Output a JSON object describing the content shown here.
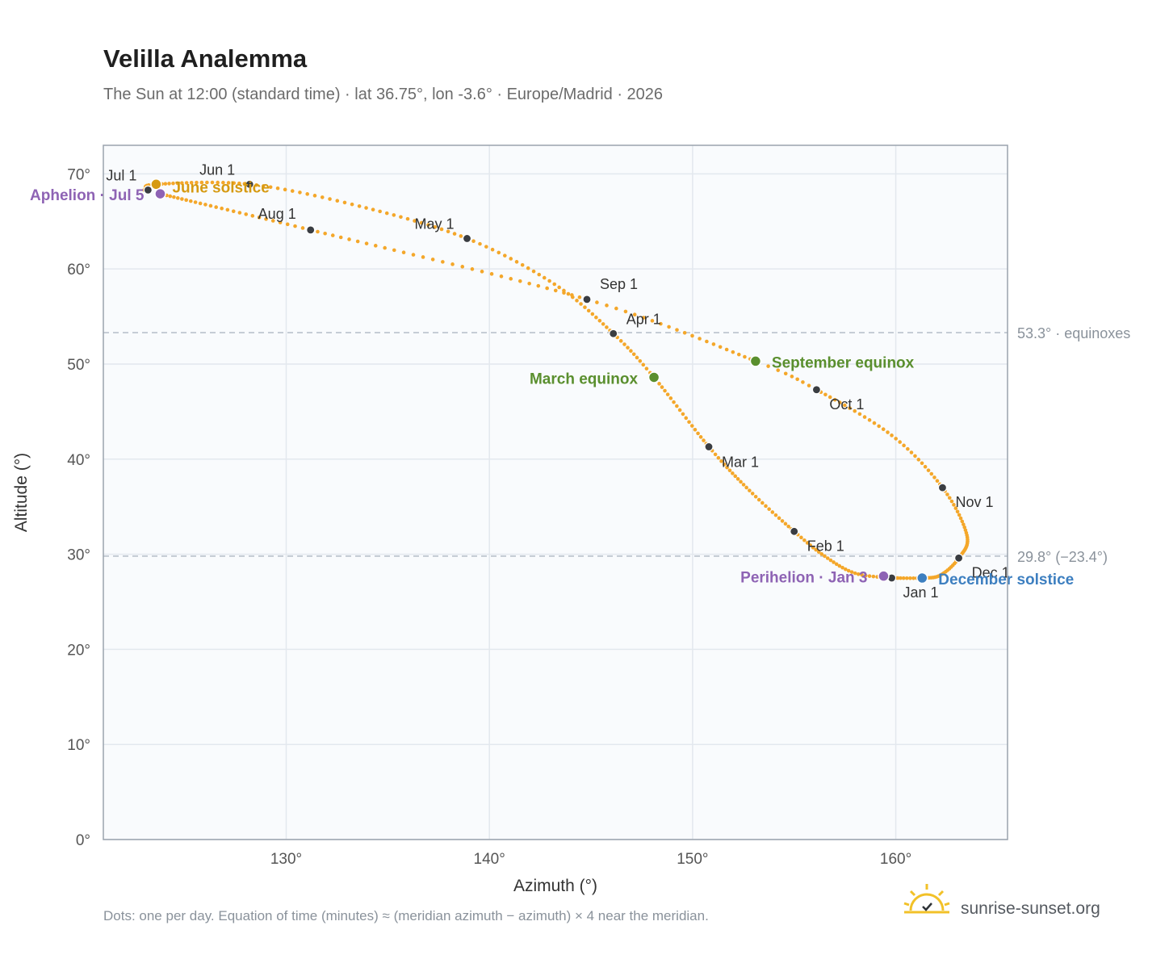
{
  "header": {
    "title": "Velilla Analemma",
    "subtitle": "The Sun at 12:00 (standard time) · lat 36.75°, lon -3.6° · Europe/Madrid · 2026"
  },
  "footer": {
    "note": "Dots: one per day. Equation of time (minutes) ≈ (meridian azimuth − azimuth) × 4 near the meridian.",
    "brand": "sunrise-sunset.org"
  },
  "colors": {
    "curve": "#f4a72a",
    "month_marker": "#3a3d42",
    "equinox": "#5a8f2e",
    "june_solstice": "#d69a12",
    "december_solstice": "#3d7fc0",
    "apsis": "#8e63b4",
    "reference_line": "#b9c2cc",
    "plot_background": "#f9fbfd",
    "grid": "#e3e8ee",
    "frame": "#9aa3ad"
  },
  "chart_data": {
    "type": "scatter",
    "xlabel": "Azimuth (°)",
    "ylabel": "Altitude (°)",
    "xlim": [
      121,
      165.5
    ],
    "ylim": [
      0,
      70
    ],
    "x_ticks": [
      130,
      140,
      150,
      160
    ],
    "x_tick_labels": [
      "130°",
      "140°",
      "150°",
      "160°"
    ],
    "y_ticks": [
      0,
      10,
      20,
      30,
      40,
      50,
      60,
      70
    ],
    "y_tick_labels": [
      "0°",
      "10°",
      "20°",
      "30°",
      "40°",
      "50°",
      "60°",
      "70°"
    ],
    "grid": true,
    "reference_lines": [
      {
        "y": 53.3,
        "label": "53.3° · equinoxes"
      },
      {
        "y": 29.8,
        "label": "29.8° (−23.4°)"
      }
    ],
    "month_points": [
      {
        "label": "Jan 1",
        "x": 159.8,
        "y": 27.5
      },
      {
        "label": "Feb 1",
        "x": 155.0,
        "y": 32.4
      },
      {
        "label": "Mar 1",
        "x": 150.8,
        "y": 41.3
      },
      {
        "label": "Apr 1",
        "x": 146.1,
        "y": 53.2
      },
      {
        "label": "May 1",
        "x": 138.9,
        "y": 63.2
      },
      {
        "label": "Jun 1",
        "x": 128.2,
        "y": 68.9
      },
      {
        "label": "Jul 1",
        "x": 123.2,
        "y": 68.3
      },
      {
        "label": "Aug 1",
        "x": 131.2,
        "y": 64.1
      },
      {
        "label": "Sep 1",
        "x": 144.8,
        "y": 56.8
      },
      {
        "label": "Oct 1",
        "x": 156.1,
        "y": 47.3
      },
      {
        "label": "Nov 1",
        "x": 162.3,
        "y": 37.0
      },
      {
        "label": "Dec 1",
        "x": 163.1,
        "y": 29.6
      }
    ],
    "events": [
      {
        "label": "March equinox",
        "x": 148.1,
        "y": 48.6,
        "kind": "equinox"
      },
      {
        "label": "September equinox",
        "x": 153.1,
        "y": 50.3,
        "kind": "equinox"
      },
      {
        "label": "June solstice",
        "x": 123.6,
        "y": 68.9,
        "kind": "june_solstice"
      },
      {
        "label": "December solstice",
        "x": 161.3,
        "y": 27.5,
        "kind": "december_solstice"
      },
      {
        "label": "Aphelion · Jul 5",
        "x": 123.8,
        "y": 67.9,
        "kind": "apsis"
      },
      {
        "label": "Perihelion · Jan 3",
        "x": 159.4,
        "y": 27.7,
        "kind": "apsis"
      }
    ],
    "path_nodes": [
      {
        "day": 1,
        "x": 159.8,
        "y": 27.5
      },
      {
        "day": 12,
        "x": 158.0,
        "y": 28.0
      },
      {
        "day": 22,
        "x": 156.5,
        "y": 29.8
      },
      {
        "day": 32,
        "x": 155.0,
        "y": 32.4
      },
      {
        "day": 46,
        "x": 152.8,
        "y": 36.7
      },
      {
        "day": 60,
        "x": 150.8,
        "y": 41.3
      },
      {
        "day": 79,
        "x": 148.1,
        "y": 48.6
      },
      {
        "day": 91,
        "x": 146.1,
        "y": 53.2
      },
      {
        "day": 106,
        "x": 143.2,
        "y": 58.4
      },
      {
        "day": 121,
        "x": 138.9,
        "y": 63.2
      },
      {
        "day": 137,
        "x": 133.6,
        "y": 66.6
      },
      {
        "day": 152,
        "x": 128.2,
        "y": 68.9
      },
      {
        "day": 172,
        "x": 123.6,
        "y": 68.9
      },
      {
        "day": 182,
        "x": 123.2,
        "y": 68.3
      },
      {
        "day": 186,
        "x": 123.8,
        "y": 67.9
      },
      {
        "day": 213,
        "x": 131.2,
        "y": 64.1
      },
      {
        "day": 244,
        "x": 144.8,
        "y": 56.8
      },
      {
        "day": 266,
        "x": 153.1,
        "y": 50.3
      },
      {
        "day": 274,
        "x": 156.1,
        "y": 47.3
      },
      {
        "day": 290,
        "x": 159.8,
        "y": 42.5
      },
      {
        "day": 305,
        "x": 162.3,
        "y": 37.0
      },
      {
        "day": 320,
        "x": 163.5,
        "y": 32.0
      },
      {
        "day": 335,
        "x": 163.1,
        "y": 29.6
      },
      {
        "day": 346,
        "x": 162.2,
        "y": 27.8
      },
      {
        "day": 355,
        "x": 161.3,
        "y": 27.5
      },
      {
        "day": 365,
        "x": 159.9,
        "y": 27.5
      }
    ]
  }
}
